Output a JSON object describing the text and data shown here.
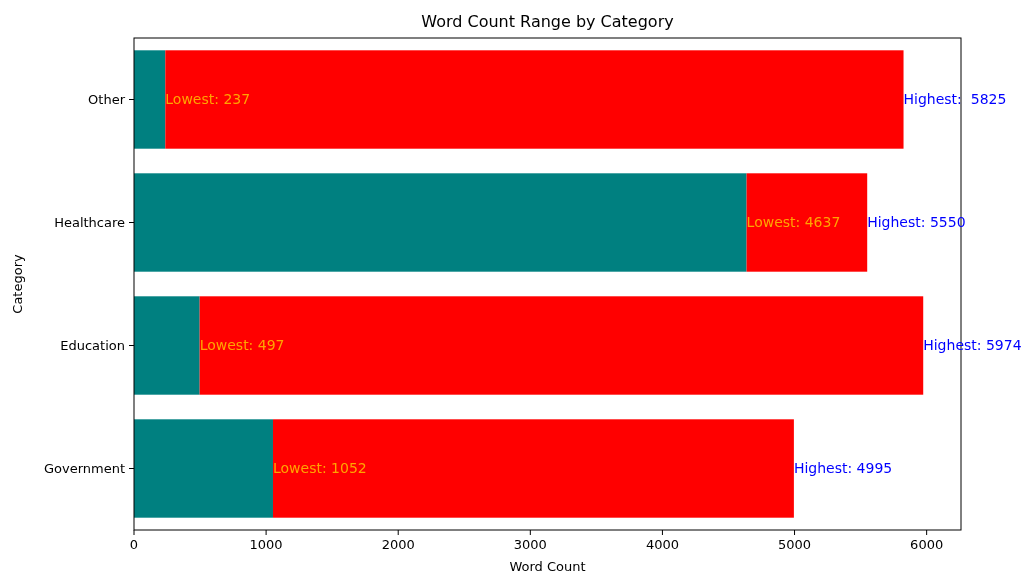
{
  "chart_data": {
    "type": "bar",
    "orientation": "horizontal",
    "stacked": true,
    "title": "Word Count Range by Category",
    "xlabel": "Word Count",
    "ylabel": "Category",
    "categories": [
      "Other",
      "Healthcare",
      "Education",
      "Government"
    ],
    "series": [
      {
        "color": "#008080",
        "values": [
          237,
          4637,
          497,
          1052
        ]
      },
      {
        "color": "#ff0000",
        "values": [
          5588,
          913,
          5477,
          3943
        ]
      }
    ],
    "annotations": [
      {
        "text": "Lowest: 237",
        "x": 237,
        "y": "Other"
      },
      {
        "text": "Highest:  5825",
        "x": 5825,
        "y": "Other"
      },
      {
        "text": "Lowest: 4637",
        "x": 4637,
        "y": "Healthcare"
      },
      {
        "text": "Highest: 5550",
        "x": 5550,
        "y": "Healthcare"
      },
      {
        "text": "Lowest: 497",
        "x": 497,
        "y": "Education"
      },
      {
        "text": "Highest: 5974",
        "x": 5974,
        "y": "Education"
      },
      {
        "text": "Lowest: 1052",
        "x": 1052,
        "y": "Government"
      },
      {
        "text": "Highest: 4995",
        "x": 4995,
        "y": "Government"
      }
    ],
    "xlim": [
      0,
      6260
    ],
    "xticks": [
      0,
      1000,
      2000,
      3000,
      4000,
      5000,
      6000
    ]
  }
}
